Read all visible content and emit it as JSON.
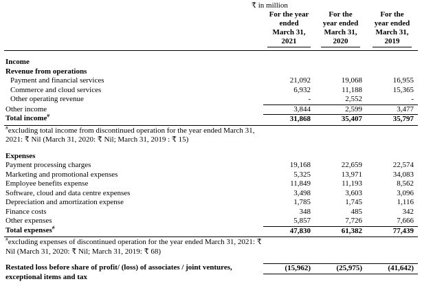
{
  "note": "₹ in million",
  "table": {
    "columns": [
      {
        "lines": [
          "For the year",
          "ended",
          "March 31,",
          "2021"
        ]
      },
      {
        "lines": [
          "For the",
          "year ended",
          "March 31,",
          "2020"
        ]
      },
      {
        "lines": [
          "For the",
          "year ended",
          "March 31,",
          "2019"
        ]
      }
    ],
    "rows": [
      {
        "type": "spacer"
      },
      {
        "type": "section",
        "label": "Income"
      },
      {
        "type": "section",
        "label": "Revenue from operations"
      },
      {
        "type": "data",
        "indent": true,
        "label": "Payment and financial services",
        "values": [
          "21,092",
          "19,068",
          "16,955"
        ]
      },
      {
        "type": "data",
        "indent": true,
        "label": "Commerce and cloud services",
        "values": [
          "6,932",
          "11,188",
          "15,365"
        ]
      },
      {
        "type": "data",
        "indent": true,
        "label": "Other operating revenue",
        "values": [
          "-",
          "2,552",
          "-"
        ],
        "value_border_bottom": true
      },
      {
        "type": "data",
        "label": "Other income",
        "values": [
          "3,844",
          "2,599",
          "3,477"
        ]
      },
      {
        "type": "total",
        "label": "Total income",
        "label_sup": "#",
        "values": [
          "31,868",
          "35,407",
          "35,797"
        ],
        "value_border_top": true,
        "rule_below": true
      },
      {
        "type": "footnote",
        "sup": "#",
        "label": "excluding total income from discontinued operation for the year ended March 31, 2021: ₹ Nil (March 31, 2020: ₹ Nil; March 31, 2019 : ₹ 15)"
      },
      {
        "type": "spacer"
      },
      {
        "type": "section",
        "label": "Expenses"
      },
      {
        "type": "data",
        "label": "Payment processing charges",
        "values": [
          "19,168",
          "22,659",
          "22,574"
        ]
      },
      {
        "type": "data",
        "label": "Marketing and promotional expenses",
        "values": [
          "5,325",
          "13,971",
          "34,083"
        ]
      },
      {
        "type": "data",
        "label": "Employee benefits expense",
        "values": [
          "11,849",
          "11,193",
          "8,562"
        ]
      },
      {
        "type": "data",
        "label": "Software, cloud and data centre expenses",
        "values": [
          "3,498",
          "3,603",
          "3,096"
        ]
      },
      {
        "type": "data",
        "label": "Depreciation and amortization expense",
        "values": [
          "1,785",
          "1,745",
          "1,116"
        ]
      },
      {
        "type": "data",
        "label": "Finance costs",
        "values": [
          "348",
          "485",
          "342"
        ]
      },
      {
        "type": "data",
        "label": "Other expenses",
        "values": [
          "5,857",
          "7,726",
          "7,666"
        ]
      },
      {
        "type": "total",
        "label": "Total expenses",
        "label_sup": "#",
        "values": [
          "47,830",
          "61,382",
          "77,439"
        ],
        "value_border_top": true,
        "rule_below": true
      },
      {
        "type": "footnote",
        "sup": "#",
        "label": "excluding expenses of discontinued operation for the year ended March 31, 2021: ₹ Nil (March 31, 2020: ₹ Nil; March 31, 2019: ₹ 68)"
      },
      {
        "type": "spacer"
      },
      {
        "type": "total",
        "label": "Restated loss before share of profit/ (loss) of associates / joint ventures, exceptional items and tax",
        "values": [
          "(15,962)",
          "(25,975)",
          "(41,642)"
        ],
        "value_border_top": true,
        "value_border_bottom": true
      }
    ]
  }
}
